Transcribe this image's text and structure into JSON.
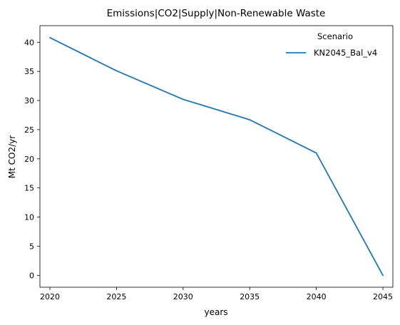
{
  "chart_data": {
    "type": "line",
    "title": "Emissions|CO2|Supply|Non-Renewable Waste",
    "xlabel": "years",
    "ylabel": "Mt CO2/yr",
    "x": [
      2020,
      2025,
      2030,
      2035,
      2040,
      2045
    ],
    "xticks": [
      2020,
      2025,
      2030,
      2035,
      2040,
      2045
    ],
    "yticks": [
      0,
      5,
      10,
      15,
      20,
      25,
      30,
      35,
      40
    ],
    "xlim": [
      2019.25,
      2045.75
    ],
    "ylim": [
      -2.04,
      42.85
    ],
    "grid": false,
    "legend": {
      "title": "Scenario",
      "placement": "top-right"
    },
    "series": [
      {
        "name": "KN2045_Bal_v4",
        "color": "#1f77b4",
        "values": [
          40.8,
          35.1,
          30.2,
          26.7,
          21.0,
          0.0
        ]
      }
    ]
  }
}
